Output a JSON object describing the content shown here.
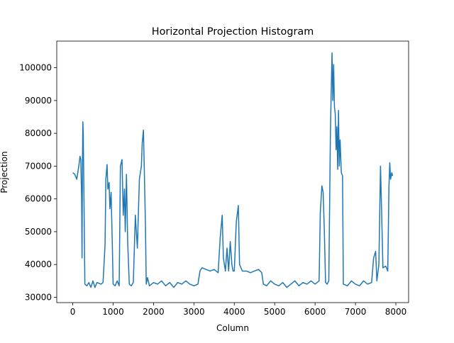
{
  "chart_data": {
    "type": "line",
    "title": "Horizontal Projection Histogram",
    "xlabel": "Column",
    "ylabel": "Projection",
    "x": [
      0,
      50,
      100,
      150,
      180,
      200,
      220,
      230,
      240,
      250,
      260,
      280,
      300,
      350,
      400,
      450,
      500,
      550,
      600,
      700,
      750,
      800,
      820,
      850,
      870,
      900,
      920,
      950,
      980,
      1000,
      1050,
      1100,
      1150,
      1180,
      1220,
      1250,
      1280,
      1300,
      1330,
      1360,
      1400,
      1450,
      1500,
      1550,
      1600,
      1650,
      1700,
      1720,
      1750,
      1770,
      1800,
      1820,
      1850,
      1900,
      2000,
      2100,
      2200,
      2300,
      2400,
      2500,
      2600,
      2700,
      2800,
      2900,
      3000,
      3100,
      3150,
      3200,
      3300,
      3400,
      3500,
      3600,
      3650,
      3700,
      3730,
      3780,
      3820,
      3860,
      3900,
      3940,
      3970,
      4000,
      4050,
      4100,
      4130,
      4200,
      4300,
      4400,
      4500,
      4600,
      4680,
      4720,
      4800,
      4900,
      5000,
      5100,
      5200,
      5300,
      5400,
      5500,
      5600,
      5700,
      5800,
      5900,
      6000,
      6100,
      6130,
      6170,
      6200,
      6230,
      6260,
      6300,
      6340,
      6380,
      6400,
      6420,
      6440,
      6460,
      6480,
      6500,
      6520,
      6540,
      6560,
      6580,
      6600,
      6620,
      6650,
      6680,
      6700,
      6800,
      6900,
      7000,
      7100,
      7200,
      7300,
      7400,
      7450,
      7500,
      7530,
      7580,
      7620,
      7650,
      7680,
      7750,
      7800,
      7830,
      7850,
      7870,
      7900,
      7920
    ],
    "series": [
      {
        "name": "Projection",
        "color": "#1f77b4",
        "values": [
          68000,
          67500,
          66000,
          70000,
          73000,
          72000,
          60000,
          42000,
          70000,
          83500,
          80000,
          58000,
          34000,
          33500,
          34500,
          33000,
          35000,
          33000,
          34500,
          34000,
          34500,
          46000,
          66000,
          70500,
          63000,
          65000,
          57000,
          62000,
          46000,
          34000,
          33500,
          35000,
          33500,
          70000,
          72000,
          55000,
          63000,
          50000,
          67500,
          47000,
          34000,
          33500,
          34500,
          55000,
          45000,
          66000,
          70000,
          77000,
          81000,
          70000,
          52000,
          34000,
          36000,
          33500,
          34500,
          34000,
          35000,
          33500,
          34500,
          33000,
          34500,
          34000,
          35000,
          34000,
          33500,
          34000,
          38000,
          39000,
          38500,
          38000,
          38500,
          37500,
          48000,
          55000,
          42000,
          38000,
          45000,
          38000,
          47000,
          40000,
          38000,
          38000,
          53000,
          58000,
          40000,
          38000,
          38000,
          37500,
          38000,
          38500,
          37500,
          34000,
          33500,
          35000,
          34000,
          33500,
          34500,
          33000,
          34000,
          35000,
          33500,
          34500,
          34000,
          35000,
          34000,
          35000,
          56000,
          64000,
          62000,
          50000,
          34500,
          34000,
          35000,
          80000,
          93000,
          104500,
          90000,
          101000,
          88000,
          86000,
          75000,
          82000,
          69000,
          87000,
          70000,
          78000,
          68000,
          67000,
          34000,
          33500,
          35000,
          34000,
          33500,
          35000,
          34000,
          34500,
          42000,
          44000,
          35000,
          40000,
          70000,
          55000,
          39000,
          39500,
          38000,
          64000,
          71000,
          66000,
          68000,
          67000
        ]
      }
    ],
    "xlim": [
      -396,
      8316
    ],
    "ylim": [
      28375,
      108125
    ],
    "xticks": [
      0,
      1000,
      2000,
      3000,
      4000,
      5000,
      6000,
      7000,
      8000
    ],
    "yticks": [
      30000,
      40000,
      50000,
      60000,
      70000,
      80000,
      90000,
      100000
    ]
  }
}
